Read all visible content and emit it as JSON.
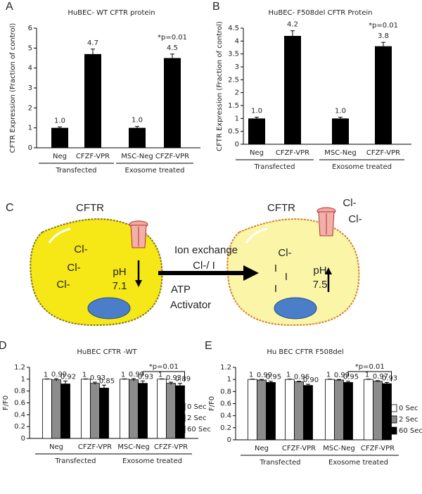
{
  "chart_data": [
    {
      "type": "bar",
      "panel_label": "A",
      "title": "HuBEC-  WT CFTR  protein",
      "y_label": "CFTR Expression (Fraction of control)",
      "categories": [
        "Neg",
        "CFZF-VPR",
        "MSC-Neg",
        "CFZF-VPR"
      ],
      "group_labels": [
        "Transfected",
        "Exosome treated"
      ],
      "values": [
        1.0,
        4.7,
        1.0,
        4.5
      ],
      "errors": [
        0.05,
        0.25,
        0.07,
        0.2
      ],
      "value_labels": [
        "1.0",
        "4.7",
        "1.0",
        "4.5"
      ],
      "color": "#000000",
      "ylim": [
        0,
        6
      ],
      "yticks": [
        0,
        1,
        2,
        3,
        4,
        5,
        6
      ],
      "annotation": "*p=0.01"
    },
    {
      "type": "bar",
      "panel_label": "B",
      "title": "HuBEC- F508del CFTR Protein",
      "y_label": "CFTR Expression (Fraction of control)",
      "categories": [
        "Neg",
        "CFZF-VPR",
        "MSC-Neg",
        "CFZF-VPR"
      ],
      "group_labels": [
        "Transfected",
        "Exosome treated"
      ],
      "values": [
        1.0,
        4.2,
        1.0,
        3.8
      ],
      "errors": [
        0.05,
        0.2,
        0.05,
        0.15
      ],
      "value_labels": [
        "1.0",
        "4.2",
        "1.0",
        "3.8"
      ],
      "color": "#000000",
      "ylim": [
        0,
        4.5
      ],
      "yticks": [
        0,
        0.5,
        1,
        1.5,
        2,
        2.5,
        3,
        3.5,
        4,
        4.5
      ],
      "annotation": "*p=0.01"
    },
    {
      "type": "grouped_bar",
      "panel_label": "D",
      "title": "HuBEC CFTR -WT",
      "y_label": "F/F0",
      "categories": [
        "Neg",
        "CFZF-VPR",
        "MSC-Neg",
        "CFZF-VPR"
      ],
      "group_labels": [
        "Transfected",
        "Exosome treated"
      ],
      "series": [
        {
          "name": "0 Sec",
          "color": "#ffffff",
          "values": [
            1,
            1,
            1,
            1
          ],
          "errors": [
            0.005,
            0.005,
            0.005,
            0.005
          ]
        },
        {
          "name": "2 Sec",
          "color": "#8c8c8c",
          "values": [
            0.99,
            0.93,
            0.99,
            0.93
          ],
          "errors": [
            0.02,
            0.02,
            0.02,
            0.02
          ]
        },
        {
          "name": "60 Sec",
          "color": "#000000",
          "values": [
            0.92,
            0.85,
            0.93,
            0.89
          ],
          "errors": [
            0.05,
            0.05,
            0.04,
            0.04
          ]
        }
      ],
      "ylim": [
        0,
        1.2
      ],
      "yticks": [
        0,
        0.2,
        0.4,
        0.6,
        0.8,
        1,
        1.2
      ],
      "annotation": "*p=0.01"
    },
    {
      "type": "grouped_bar",
      "panel_label": "E",
      "title": "Hu BEC CFTR F508del",
      "y_label": "F/F0",
      "categories": [
        "Neg",
        "CFZF-VPR",
        "MSC-Neg",
        "CFZF-VPR"
      ],
      "group_labels": [
        "Transfected",
        "Exosome treated"
      ],
      "series": [
        {
          "name": "0 Sec",
          "color": "#ffffff",
          "values": [
            1,
            1,
            1,
            1
          ],
          "errors": [
            0.005,
            0.005,
            0.005,
            0.005
          ]
        },
        {
          "name": "2 Sec",
          "color": "#8c8c8c",
          "values": [
            0.99,
            0.96,
            0.99,
            0.97
          ],
          "errors": [
            0.01,
            0.01,
            0.01,
            0.01
          ]
        },
        {
          "name": "60 Sec",
          "color": "#000000",
          "values": [
            0.95,
            0.9,
            0.95,
            0.93
          ],
          "errors": [
            0.02,
            0.02,
            0.02,
            0.02
          ],
          "value_labels": [
            "0.95",
            "0.90",
            "0.95",
            "0.93"
          ]
        }
      ],
      "ylim": [
        0,
        1.2
      ],
      "yticks": [
        0,
        0.2,
        0.4,
        0.6,
        0.8,
        1,
        1.2
      ],
      "annotation": "*p=0.01"
    }
  ],
  "diagram": {
    "panel_label": "C",
    "left_cell": {
      "channel_label": "CFTR",
      "ions": [
        "Cl-",
        "Cl-",
        "Cl-"
      ],
      "ph_label": "pH",
      "ph_value": "7.1"
    },
    "arrow_labels": [
      "Ion exchange",
      "Cl-/  I",
      "ATP",
      "Activator"
    ],
    "right_cell": {
      "channel_label": "CFTR",
      "outside_ions": [
        "Cl-",
        "Cl-"
      ],
      "ions": [
        "Cl-",
        "I",
        "I",
        "I"
      ],
      "ph_label": "pH",
      "ph_value": "7.5"
    }
  }
}
